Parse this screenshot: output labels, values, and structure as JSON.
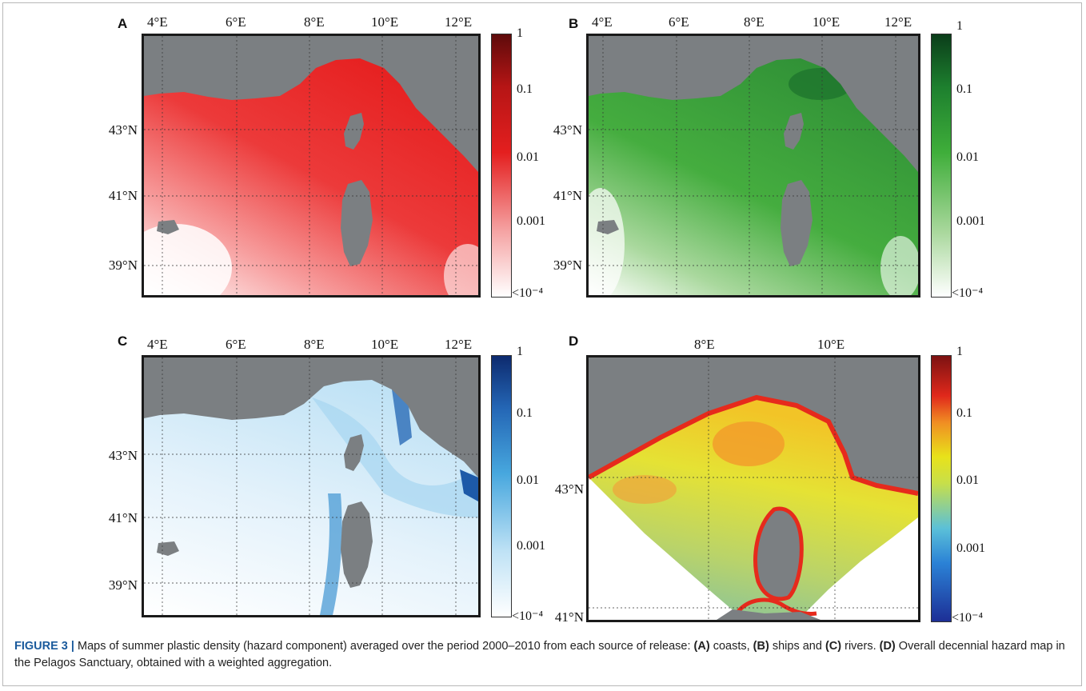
{
  "figure": {
    "panels": [
      {
        "letter": "A",
        "lon_labels": [
          "4°E",
          "6°E",
          "8°E",
          "10°E",
          "12°E"
        ],
        "lat_labels": [
          "43°N",
          "41°N",
          "39°N"
        ],
        "colorbar_labels": [
          "1",
          "0.1",
          "0.01",
          "0.001",
          "<10⁻⁴"
        ],
        "palette": "red",
        "colors": {
          "low": "#ffffff",
          "mid": "#e41f1f",
          "high": "#5e0b0b"
        }
      },
      {
        "letter": "B",
        "lon_labels": [
          "4°E",
          "6°E",
          "8°E",
          "10°E",
          "12°E"
        ],
        "lat_labels": [
          "43°N",
          "41°N",
          "39°N"
        ],
        "colorbar_labels": [
          "1",
          "0.1",
          "0.01",
          "0.001",
          "<10⁻⁴"
        ],
        "palette": "green",
        "colors": {
          "low": "#ffffff",
          "mid": "#3fae3a",
          "high": "#0b3d1a"
        }
      },
      {
        "letter": "C",
        "lon_labels": [
          "4°E",
          "6°E",
          "8°E",
          "10°E",
          "12°E"
        ],
        "lat_labels": [
          "43°N",
          "41°N",
          "39°N"
        ],
        "colorbar_labels": [
          "1",
          "0.1",
          "0.01",
          "0.001",
          "<10⁻⁴"
        ],
        "palette": "blue",
        "colors": {
          "low": "#ffffff",
          "mid": "#47a7de",
          "high": "#0d2a6e"
        }
      },
      {
        "letter": "D",
        "lon_labels": [
          "8°E",
          "10°E"
        ],
        "lat_labels": [
          "43°N",
          "41°N"
        ],
        "colorbar_labels": [
          "1",
          "0.1",
          "0.01",
          "0.001",
          "<10⁻⁴"
        ],
        "palette": "jet",
        "colors": {
          "low": "#1d2f96",
          "mid": "#e8e21a",
          "high": "#7c1212"
        }
      }
    ]
  },
  "caption": {
    "fig_label": "FIGURE 3 |",
    "text_1": " Maps of summer plastic density (hazard component) averaged over the period 2000–2010 from each source of release: ",
    "a_label": "(A)",
    "text_2": " coasts, ",
    "b_label": "(B)",
    "text_3": " ships and ",
    "c_label": "(C)",
    "text_4": " rivers. ",
    "d_label": "(D)",
    "text_5": " Overall decennial hazard map in the Pelagos Sanctuary, obtained with a weighted aggregation."
  }
}
